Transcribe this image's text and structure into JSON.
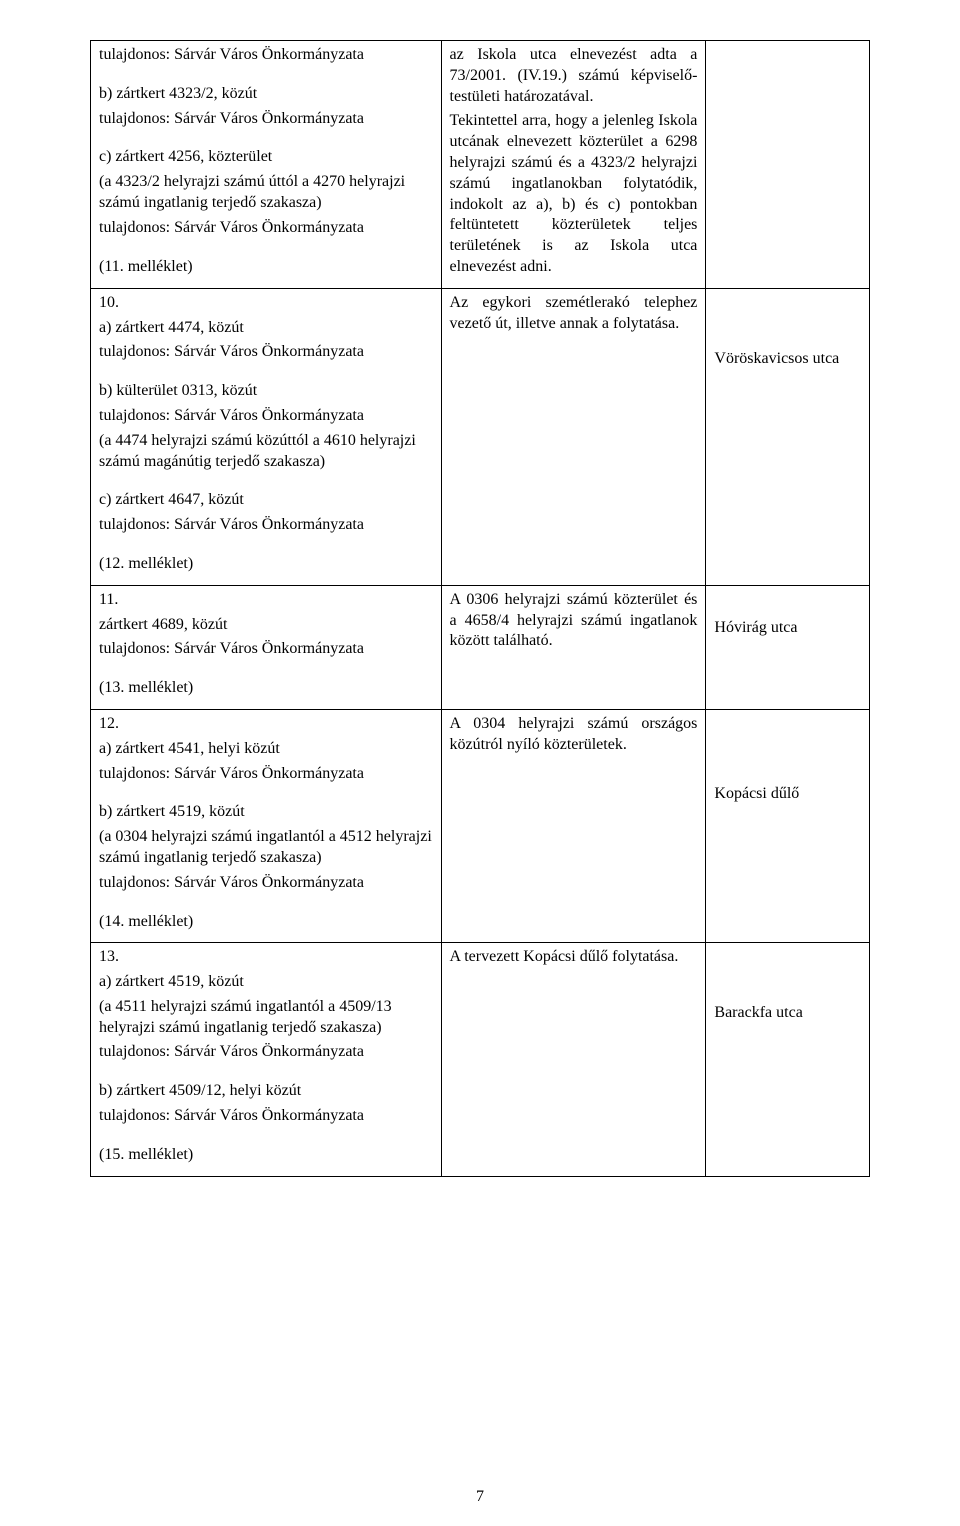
{
  "rows": [
    {
      "left": [
        "tulajdonos: Sárvár Város Önkormányzata",
        "",
        "b) zártkert 4323/2, közút",
        "tulajdonos: Sárvár Város Önkormányzata",
        "",
        "c) zártkert 4256, közterület",
        "(a 4323/2 helyrajzi számú úttól a 4270 helyrajzi számú ingatlanig terjedő szakasza)",
        "tulajdonos: Sárvár Város Önkormányzata",
        "",
        "(11. melléklet)"
      ],
      "mid": [
        "az Iskola utca elnevezést adta a 73/2001. (IV.19.) számú képviselő-testületi határozatával.",
        "Tekintettel arra, hogy a jelenleg Iskola utcának elnevezett közterület a 6298 helyrajzi számú és a 4323/2 helyrajzi számú ingatlanokban folytatódik, indokolt az a), b) és c) pontokban feltüntetett közterületek teljes területének is az Iskola utca elnevezést adni."
      ],
      "right": [
        ""
      ]
    },
    {
      "left": [
        "10.",
        "a) zártkert 4474, közút",
        "tulajdonos: Sárvár Város Önkormányzata",
        "",
        "b) külterület 0313, közút",
        "tulajdonos: Sárvár Város Önkormányzata",
        "(a 4474 helyrajzi számú közúttól a 4610 helyrajzi számú magánútig terjedő szakasza)",
        "",
        "c) zártkert 4647, közút",
        "tulajdonos: Sárvár Város Önkormányzata",
        "",
        "(12. melléklet)"
      ],
      "mid": [
        "Az egykori szemétlerakó telephez vezető út, illetve annak a folytatása."
      ],
      "right": [
        "",
        "",
        "",
        "",
        "Vöröskavicsos utca"
      ]
    },
    {
      "left": [
        "11.",
        "zártkert 4689, közút",
        "tulajdonos: Sárvár Város Önkormányzata",
        "",
        "(13. melléklet)"
      ],
      "mid": [
        "A 0306 helyrajzi számú közterület és a 4658/4 helyrajzi számú ingatlanok között található."
      ],
      "right": [
        "",
        "",
        "Hóvirág utca"
      ]
    },
    {
      "left": [
        "12.",
        "a) zártkert 4541, helyi közút",
        "tulajdonos: Sárvár Város Önkormányzata",
        "",
        "b) zártkert 4519, közút",
        "(a 0304 helyrajzi számú ingatlantól a 4512 helyrajzi számú ingatlanig terjedő szakasza)",
        "tulajdonos: Sárvár Város Önkormányzata",
        "",
        "(14. melléklet)"
      ],
      "mid": [
        "A 0304 helyrajzi számú országos közútról nyíló közterületek."
      ],
      "right": [
        "",
        "",
        "",
        "",
        "",
        "Kopácsi dűlő"
      ]
    },
    {
      "left": [
        "13.",
        "a) zártkert 4519, közút",
        "(a 4511 helyrajzi számú ingatlantól a 4509/13 helyrajzi számú ingatlanig terjedő szakasza)",
        "tulajdonos: Sárvár Város Önkormányzata",
        "",
        "b) zártkert 4509/12, helyi közút",
        "tulajdonos: Sárvár Város Önkormányzata",
        "",
        "(15. melléklet)"
      ],
      "mid": [
        "A tervezett Kopácsi dűlő folytatása."
      ],
      "right": [
        "",
        "",
        "",
        "",
        "Barackfa utca"
      ]
    }
  ],
  "page_number": "7",
  "colors": {
    "text": "#000000",
    "background": "#ffffff",
    "border": "#000000"
  },
  "font": {
    "family": "Times New Roman",
    "size_pt": 12
  },
  "column_widths_pct": [
    45,
    34,
    21
  ]
}
